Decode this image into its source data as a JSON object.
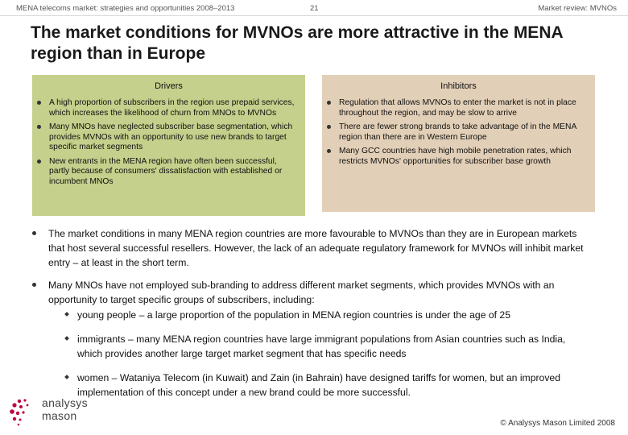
{
  "header": {
    "left": "MENA telecoms market: strategies and opportunities 2008–2013",
    "page_number": "21",
    "right": "Market review: MVNOs"
  },
  "title": "The market conditions for MVNOs are more attractive in the MENA region than in Europe",
  "drivers": {
    "heading": "Drivers",
    "items": [
      "A high proportion of subscribers in the region use prepaid services, which increases the likelihood of churn from MNOs to MVNOs",
      "Many MNOs have neglected subscriber base segmentation, which provides MVNOs with an opportunity to use new brands to target specific market segments",
      "New entrants in the MENA region have often been successful, partly because of consumers' dissatisfaction with established or incumbent MNOs"
    ]
  },
  "inhibitors": {
    "heading": "Inhibitors",
    "items": [
      "Regulation that allows MVNOs to enter the market is not in place throughout the region, and may be slow to arrive",
      "There are fewer strong brands to take advantage of in the MENA region than there are in Western Europe",
      "Many GCC countries have high mobile penetration rates, which restricts MVNOs' opportunities for subscriber base growth"
    ]
  },
  "body": {
    "bullets": [
      "The market conditions in many MENA region countries are more favourable to MVNOs than they are in European markets that host several successful resellers. However, the lack of an adequate regulatory framework for MVNOs will inhibit market entry – at least in the short term.",
      "Many MNOs have not employed sub-branding to address different market segments, which provides MVNOs with an opportunity to target specific groups of subscribers, including:"
    ],
    "sub_bullets": [
      "young people – a large proportion of the population in MENA region countries is under the age of 25",
      "immigrants – many MENA region countries have large immigrant populations from Asian countries such as India, which provides another large target market segment that has specific needs",
      "women – Wataniya Telecom (in Kuwait) and Zain (in Bahrain) have designed tariffs for women, but an improved implementation of this concept under a new brand could be more successful."
    ]
  },
  "logo": {
    "line1": "analysys",
    "line2": "mason",
    "accent": "#c0003c"
  },
  "footer": "© Analysys Mason Limited 2008"
}
